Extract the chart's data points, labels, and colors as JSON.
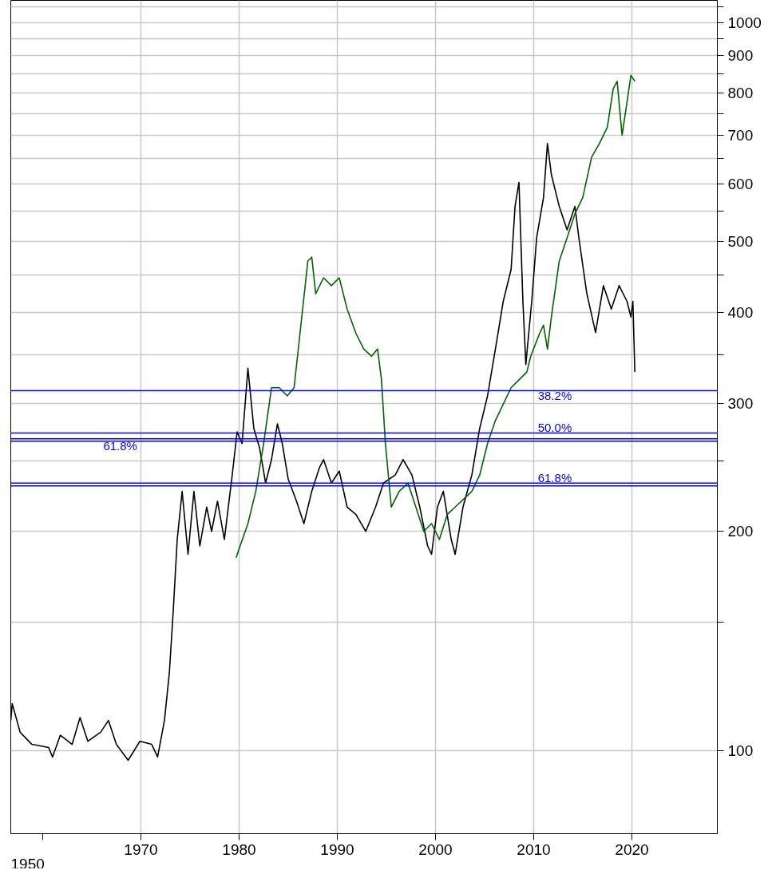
{
  "chart_data": {
    "type": "line",
    "log": true,
    "grid": true,
    "marker": "none",
    "line_style": "solid",
    "xlim": [
      1956.75,
      2028.7
    ],
    "ylim": [
      76.9,
      1072
    ],
    "xticks": [
      {
        "value": 1960,
        "label": null
      },
      1970,
      1980,
      1990,
      2000,
      2010,
      2020
    ],
    "annotations": [
      "1950",
      {
        "text": "38.2%",
        "y": 312
      },
      {
        "text": "50.0%",
        "y": 273
      },
      {
        "text": "61.8%",
        "y": 266
      },
      {
        "text": "61.8%",
        "y": 233
      }
    ],
    "yticks": [
      100,
      {
        "value": 150,
        "label": null
      },
      200,
      {
        "value": 250,
        "label": null
      },
      300,
      {
        "value": 350,
        "label": null
      },
      400,
      {
        "value": 450,
        "label": null
      },
      500,
      {
        "value": 550,
        "label": null
      },
      600,
      {
        "value": 650,
        "label": null
      },
      700,
      {
        "value": 750,
        "label": null
      },
      800,
      {
        "value": 850,
        "label": null
      },
      900,
      {
        "value": 950,
        "label": null
      },
      1000,
      {
        "value": 1050,
        "label": null
      }
    ],
    "series": [
      {
        "color": "#000000",
        "x": [
          1956.75,
          1956.9,
          1957.7,
          1958.9,
          1960.6,
          1961,
          1961.8,
          1963,
          1963.8,
          1964.6,
          1965.9,
          1966.7,
          1967.5,
          1968.7,
          1969.9,
          1971.1,
          1971.7,
          1972.4,
          1972.9,
          1973.3,
          1973.7,
          1974.2,
          1974.8,
          1975.4,
          1976,
          1976.7,
          1977.2,
          1977.8,
          1978.5,
          1979.3,
          1979.8,
          1980.3,
          1980.9,
          1981.5,
          1982.1,
          1982.7,
          1983.3,
          1983.9,
          1984.4,
          1985,
          1985.8,
          1986.6,
          1987.4,
          1988.2,
          1988.6,
          1989.4,
          1990.2,
          1991,
          1991.9,
          1992.9,
          1993.9,
          1994.7,
          1995.9,
          1996.7,
          1997.6,
          1998.4,
          1999.2,
          1999.6,
          2000.2,
          2000.8,
          2001.6,
          2002,
          2002.8,
          2003.7,
          2004.5,
          2005.3,
          2006.1,
          2006.9,
          2007.7,
          2008.1,
          2008.5,
          2008.9,
          2009.2,
          2009.8,
          2010.3,
          2011,
          2011.4,
          2011.8,
          2012.6,
          2013.4,
          2014.2,
          2014.6,
          2015.4,
          2016.3,
          2017.1,
          2017.9,
          2018.7,
          2019.5,
          2019.9,
          2020.1,
          2020.3
        ],
        "values": [
          110,
          116,
          106,
          102,
          101,
          98,
          105,
          102,
          111,
          103,
          106,
          110,
          102,
          97,
          103,
          102,
          98,
          110,
          128,
          156,
          195,
          227,
          186,
          227,
          191,
          216,
          200,
          220,
          195,
          239,
          274,
          264,
          335,
          277,
          260,
          233,
          251,
          281,
          264,
          236,
          221,
          205,
          227,
          245,
          251,
          233,
          242,
          216,
          211,
          200,
          216,
          233,
          239,
          251,
          239,
          216,
          191,
          186,
          216,
          227,
          195,
          186,
          216,
          239,
          277,
          307,
          356,
          414,
          458,
          559,
          603,
          414,
          339,
          414,
          506,
          575,
          682,
          618,
          559,
          519,
          559,
          506,
          425,
          375,
          435,
          404,
          435,
          414,
          394,
          414,
          331
        ]
      },
      {
        "color": "#006400",
        "x": [
          1979.7,
          1980.1,
          1980.9,
          1981.7,
          1982.5,
          1983.3,
          1984.1,
          1984.9,
          1985.6,
          1986.2,
          1987,
          1987.4,
          1987.8,
          1988.6,
          1989.4,
          1990.2,
          1991,
          1991.9,
          1992.7,
          1993.5,
          1994.1,
          1994.5,
          1994.9,
          1995.5,
          1996.3,
          1997.2,
          1998,
          1998.8,
          1999.6,
          2000.4,
          2001.2,
          2002,
          2002.8,
          2003.7,
          2004.5,
          2005.3,
          2006.1,
          2006.9,
          2007.7,
          2008.5,
          2009.3,
          2009.7,
          2010.6,
          2011,
          2011.4,
          2011.8,
          2012.6,
          2013.4,
          2014.2,
          2015,
          2015.9,
          2016.7,
          2017.5,
          2018.1,
          2018.5,
          2019,
          2019.5,
          2019.9,
          2020.3
        ],
        "values": [
          184,
          191,
          205,
          227,
          264,
          315,
          315,
          307,
          315,
          374,
          470,
          476,
          424,
          446,
          435,
          446,
          404,
          374,
          356,
          348,
          356,
          323,
          264,
          216,
          227,
          233,
          216,
          200,
          205,
          195,
          211,
          216,
          221,
          227,
          239,
          264,
          284,
          299,
          315,
          323,
          331,
          348,
          374,
          384,
          356,
          394,
          470,
          506,
          546,
          575,
          653,
          682,
          718,
          811,
          830,
          700,
          777,
          846,
          830
        ]
      }
    ],
    "ref_lines": [
      {
        "axis": "y",
        "value": 312,
        "color": "#0000ff"
      },
      {
        "axis": "y",
        "value": 273,
        "color": "#0000ff"
      },
      {
        "axis": "y",
        "value": 268,
        "color": "#0000ff"
      },
      {
        "axis": "y",
        "value": 266,
        "color": "#0000ff"
      },
      {
        "axis": "y",
        "value": 233,
        "color": "#0000ff"
      },
      {
        "axis": "y",
        "value": 231,
        "color": "#0000ff"
      }
    ]
  }
}
